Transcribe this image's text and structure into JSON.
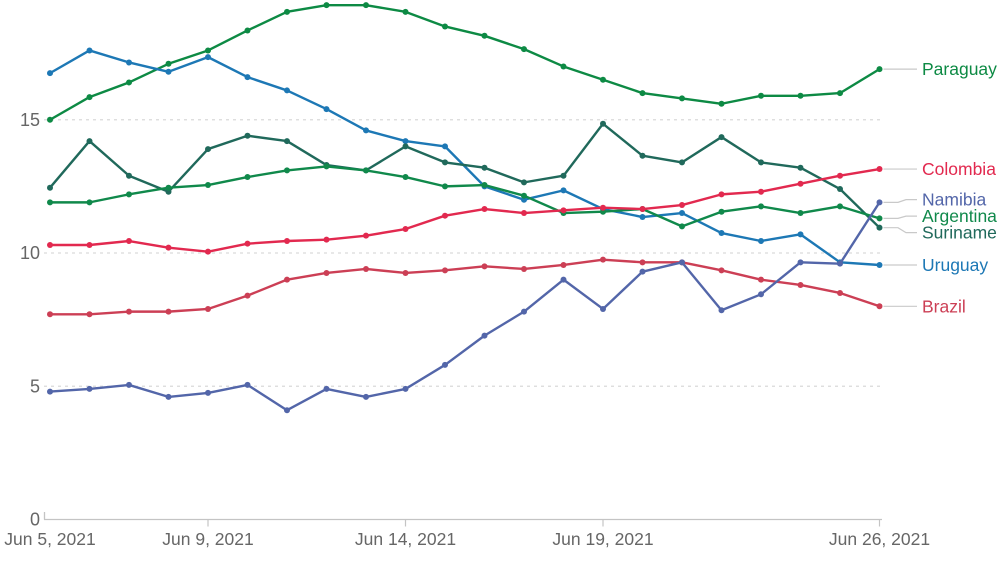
{
  "chart_data": {
    "type": "line",
    "title": "",
    "x_axis": {
      "dates": [
        "Jun 5",
        "Jun 6",
        "Jun 7",
        "Jun 8",
        "Jun 9",
        "Jun 10",
        "Jun 11",
        "Jun 12",
        "Jun 13",
        "Jun 14",
        "Jun 15",
        "Jun 16",
        "Jun 17",
        "Jun 18",
        "Jun 19",
        "Jun 20",
        "Jun 21",
        "Jun 22",
        "Jun 23",
        "Jun 24",
        "Jun 25",
        "Jun 26"
      ],
      "year": "2021",
      "ticks": [
        {
          "index": 0,
          "label": "Jun 5, 2021"
        },
        {
          "index": 4,
          "label": "Jun 9, 2021"
        },
        {
          "index": 9,
          "label": "Jun 14, 2021"
        },
        {
          "index": 14,
          "label": "Jun 19, 2021"
        },
        {
          "index": 21,
          "label": "Jun 26, 2021"
        }
      ]
    },
    "y_axis": {
      "ticks": [
        0,
        5,
        10,
        15
      ],
      "tick_labels": [
        "0",
        "5",
        "10",
        "15"
      ],
      "range": [
        0,
        19.6
      ],
      "grid": "dashed-horizontal"
    },
    "legend_position": "right-of-line-end",
    "series": [
      {
        "name": "Paraguay",
        "color": "#0d8a44",
        "values": [
          15.0,
          15.85,
          16.4,
          17.1,
          17.6,
          18.35,
          19.05,
          19.3,
          19.3,
          19.05,
          18.5,
          18.15,
          17.65,
          17.0,
          16.5,
          16.0,
          15.8,
          15.6,
          15.9,
          15.9,
          16.0,
          16.9
        ]
      },
      {
        "name": "Uruguay",
        "color": "#1d78b5",
        "values": [
          16.75,
          17.6,
          17.15,
          16.8,
          17.35,
          16.6,
          16.1,
          15.4,
          14.6,
          14.2,
          14.0,
          12.5,
          12.0,
          12.35,
          11.65,
          11.35,
          11.5,
          10.75,
          10.45,
          10.7,
          9.65,
          9.55
        ]
      },
      {
        "name": "Suriname",
        "color": "#20695b",
        "values": [
          12.45,
          14.2,
          12.9,
          12.3,
          13.9,
          14.4,
          14.2,
          13.3,
          13.1,
          14.0,
          13.4,
          13.2,
          12.65,
          12.9,
          14.85,
          13.65,
          13.4,
          14.35,
          13.4,
          13.2,
          12.4,
          10.95
        ]
      },
      {
        "name": "Argentina",
        "color": "#10894b",
        "values": [
          11.9,
          11.9,
          12.2,
          12.45,
          12.55,
          12.85,
          13.1,
          13.25,
          13.1,
          12.85,
          12.5,
          12.55,
          12.15,
          11.5,
          11.55,
          11.65,
          11.0,
          11.55,
          11.75,
          11.5,
          11.75,
          11.3
        ]
      },
      {
        "name": "Colombia",
        "color": "#e2294f",
        "values": [
          10.3,
          10.3,
          10.45,
          10.2,
          10.05,
          10.35,
          10.45,
          10.5,
          10.65,
          10.9,
          11.4,
          11.65,
          11.5,
          11.6,
          11.7,
          11.65,
          11.8,
          12.2,
          12.3,
          12.6,
          12.9,
          13.15
        ]
      },
      {
        "name": "Brazil",
        "color": "#cc3f55",
        "values": [
          7.7,
          7.7,
          7.8,
          7.8,
          7.9,
          8.4,
          9.0,
          9.25,
          9.4,
          9.25,
          9.35,
          9.5,
          9.4,
          9.55,
          9.75,
          9.65,
          9.65,
          9.35,
          9.0,
          8.8,
          8.5,
          8.0
        ]
      },
      {
        "name": "Namibia",
        "color": "#5366a9",
        "values": [
          4.8,
          4.9,
          5.05,
          4.6,
          4.75,
          5.05,
          4.1,
          4.9,
          4.6,
          4.9,
          5.8,
          6.9,
          7.8,
          9.0,
          7.9,
          9.3,
          9.65,
          7.85,
          8.45,
          9.65,
          9.6,
          11.9
        ]
      }
    ],
    "style": {
      "axis_color": "#c4c4c4",
      "gridline_color": "#d9d9d9",
      "tick_label_color": "#666666",
      "connector_color": "#c9c9c9"
    }
  }
}
